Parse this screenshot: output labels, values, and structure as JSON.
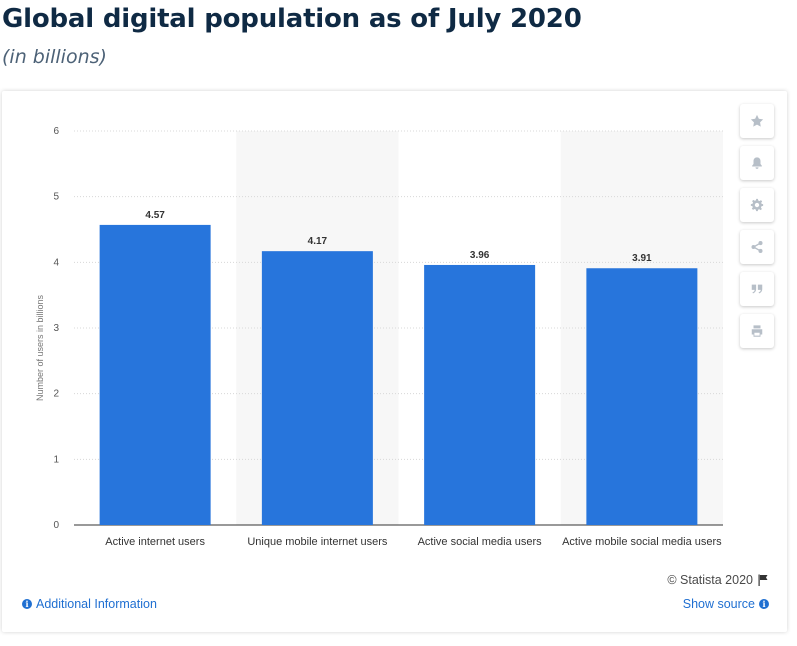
{
  "header": {
    "title": "Global digital population as of July 2020",
    "subtitle": "(in billions)"
  },
  "toolbar": {
    "buttons": [
      {
        "name": "star-icon",
        "glyph": "★"
      },
      {
        "name": "bell-icon",
        "glyph": "bell"
      },
      {
        "name": "gear-icon",
        "glyph": "⚙"
      },
      {
        "name": "share-icon",
        "glyph": "share"
      },
      {
        "name": "quote-icon",
        "glyph": "❞"
      },
      {
        "name": "print-icon",
        "glyph": "print"
      }
    ]
  },
  "footer": {
    "copyright": "© Statista 2020",
    "additional_info": "Additional Information",
    "show_source": "Show source"
  },
  "colors": {
    "bar": "#2775dc",
    "band": "#f7f7f7",
    "grid": "#d8d8d8"
  },
  "chart_data": {
    "type": "bar",
    "categories": [
      "Active internet users",
      "Unique mobile internet users",
      "Active social media users",
      "Active mobile social media users"
    ],
    "values": [
      4.57,
      4.17,
      3.96,
      3.91
    ],
    "value_labels": [
      "4.57",
      "4.17",
      "3.96",
      "3.91"
    ],
    "ylabel": "Number of users in billions",
    "xlabel": "",
    "ylim": [
      0,
      6
    ],
    "yticks": [
      0,
      1,
      2,
      3,
      4,
      5,
      6
    ],
    "grid": true,
    "legend": "none"
  }
}
